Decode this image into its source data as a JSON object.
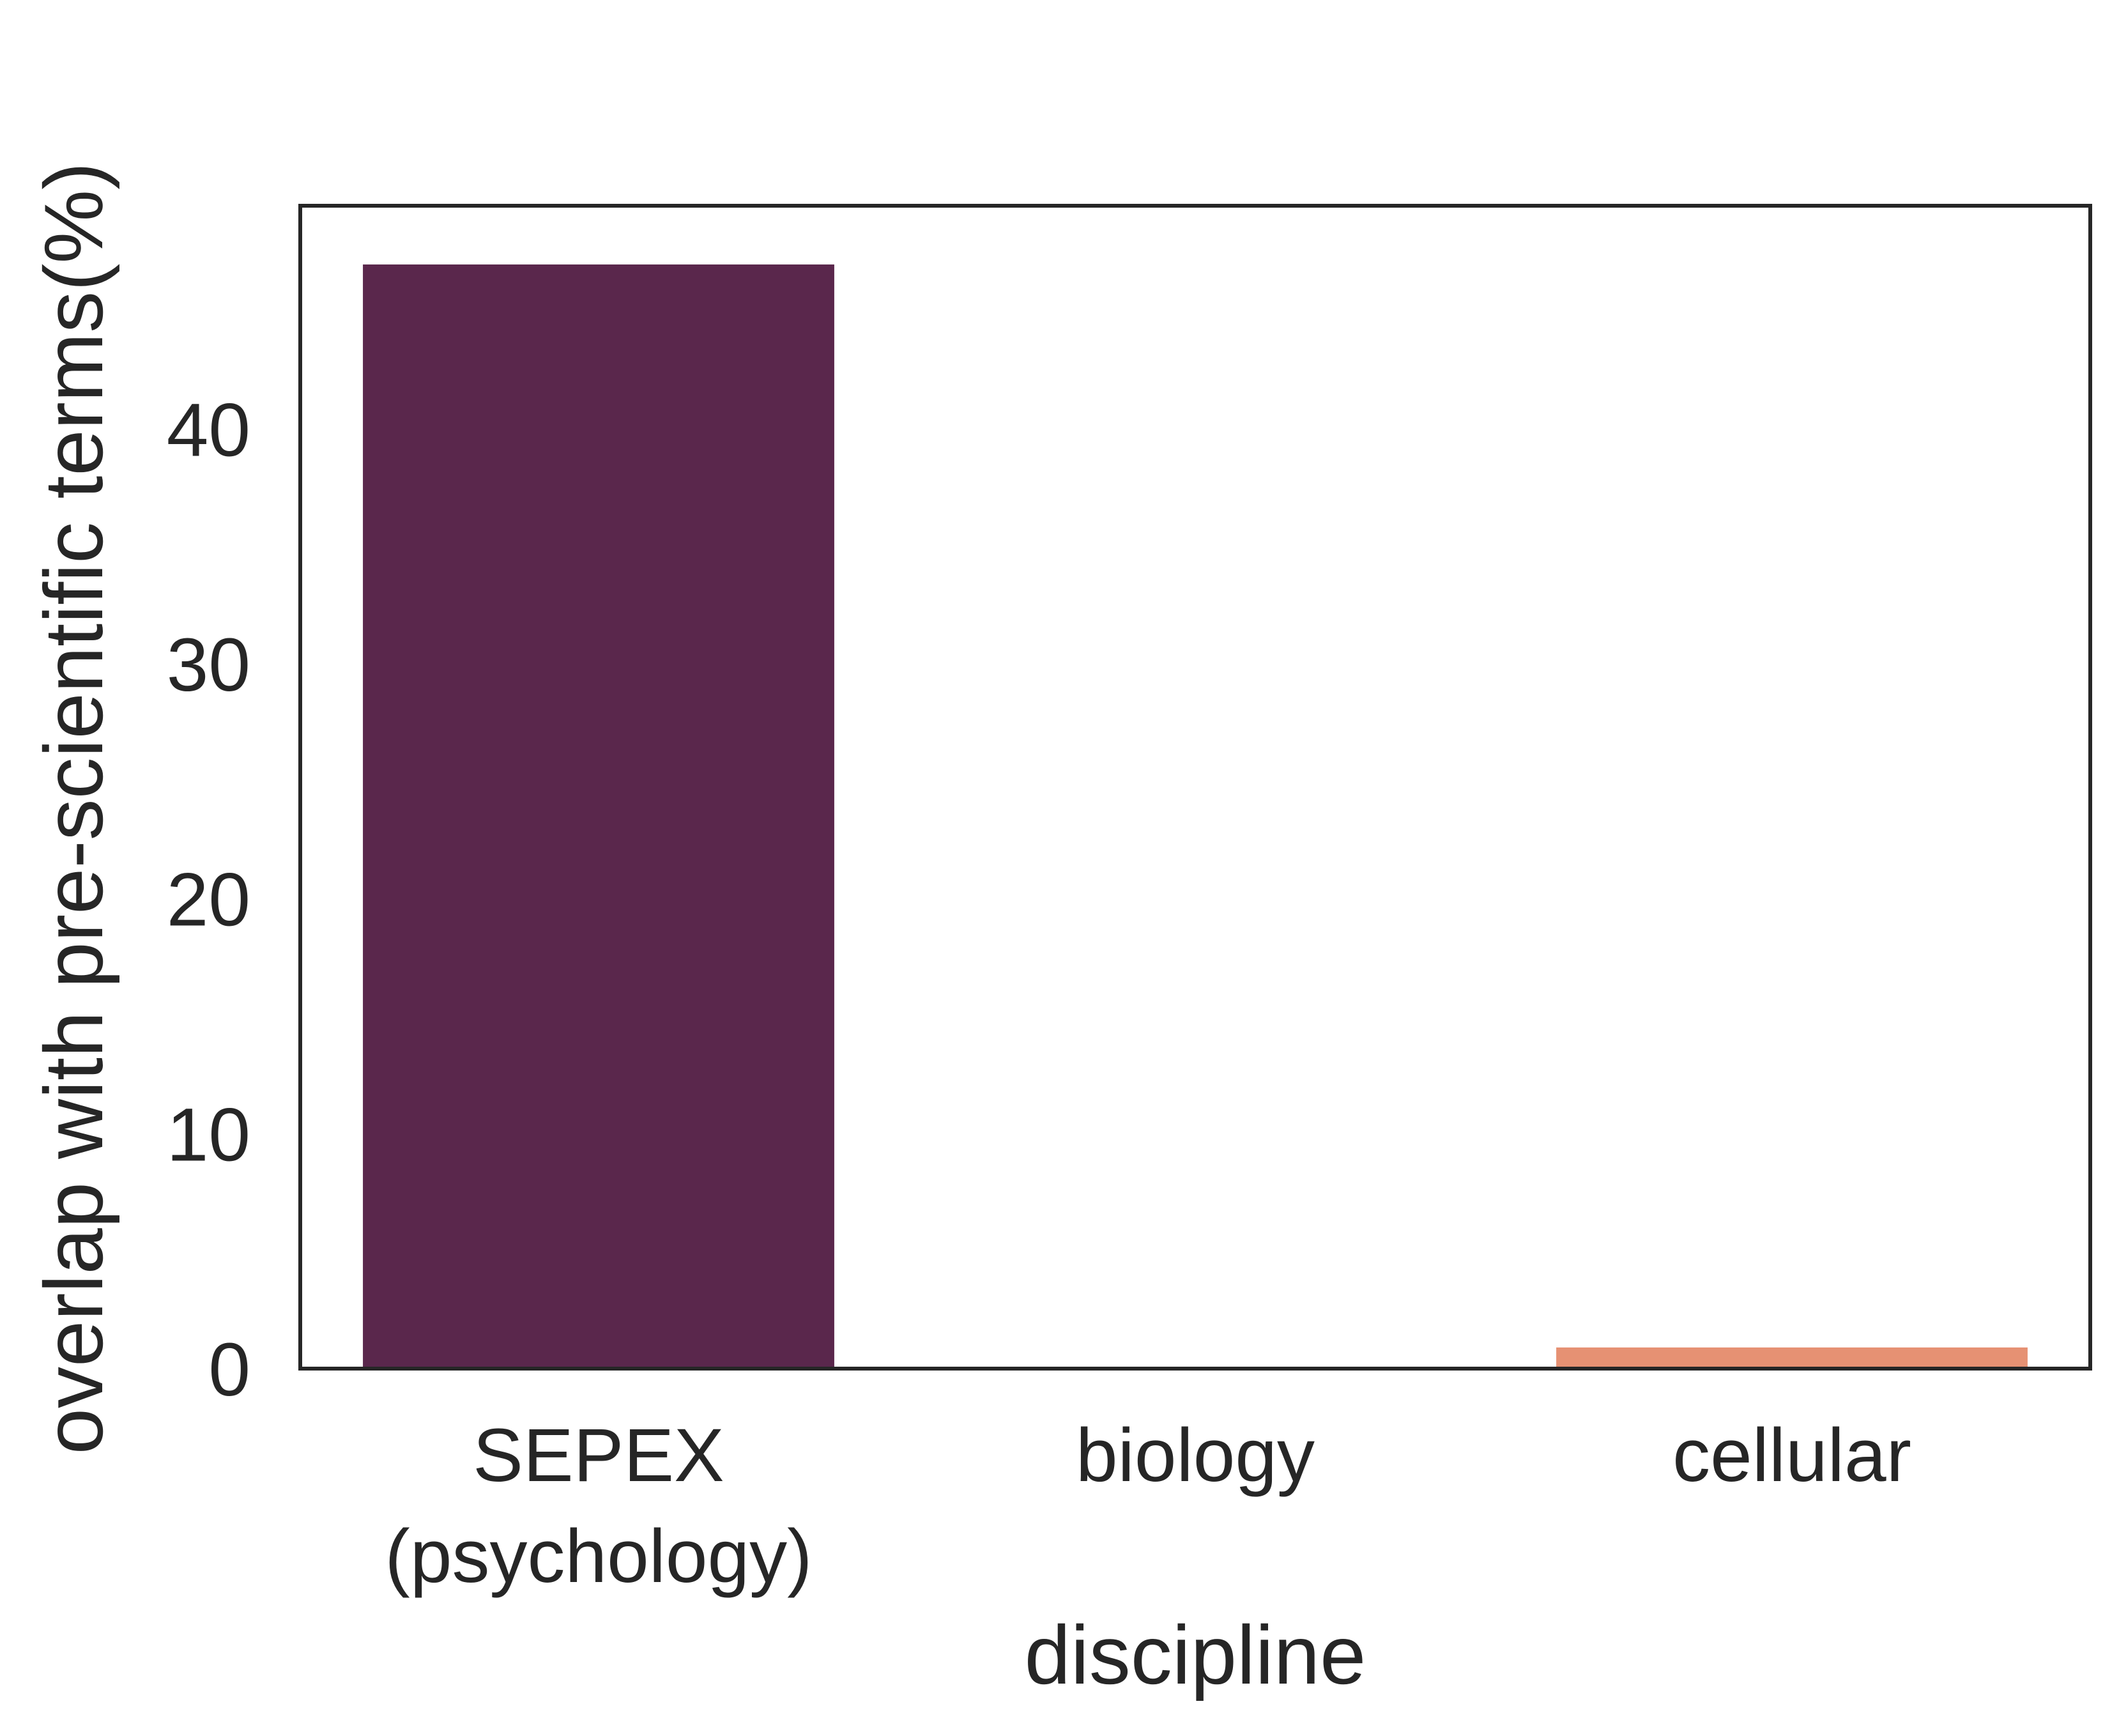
{
  "chart_data": {
    "type": "bar",
    "categories": [
      [
        "SEPEX",
        "(psychology)"
      ],
      [
        "biology"
      ],
      [
        "cellular"
      ]
    ],
    "values": [
      47.0,
      0.0,
      0.9
    ],
    "colors": [
      "#5a274c",
      "#c0405a",
      "#e69173"
    ],
    "xlabel": "discipline",
    "ylabel": "overlap with pre-scientific terms(%)",
    "ylim": [
      0,
      49.5
    ],
    "yticks": [
      0,
      10,
      20,
      30,
      40
    ],
    "grid": false
  }
}
